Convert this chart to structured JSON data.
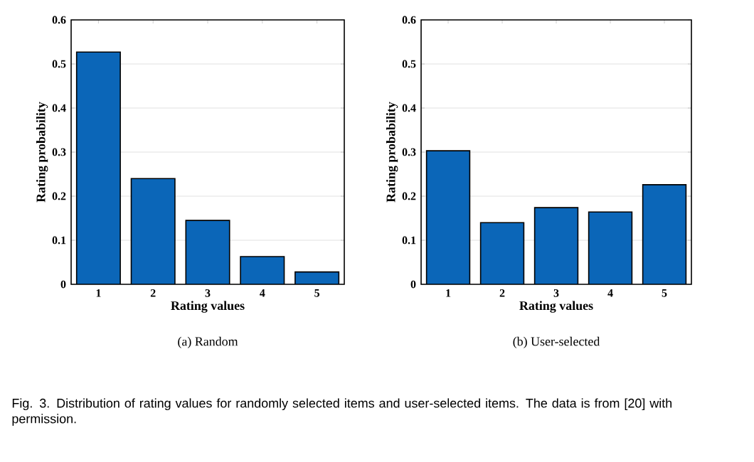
{
  "chart_data": [
    {
      "type": "bar",
      "xlabel": "Rating values",
      "ylabel": "Rating probability",
      "categories": [
        "1",
        "2",
        "3",
        "4",
        "5"
      ],
      "values": [
        0.527,
        0.24,
        0.145,
        0.063,
        0.028
      ],
      "color": "#0b66b8",
      "ylim": [
        0,
        0.6
      ],
      "yticks": [
        0,
        0.1,
        0.2,
        0.3,
        0.4,
        0.5,
        0.6
      ],
      "grid": "y",
      "annotations": [
        "(a) Random"
      ]
    },
    {
      "type": "bar",
      "xlabel": "Rating values",
      "ylabel": "Rating probability",
      "categories": [
        "1",
        "2",
        "3",
        "4",
        "5"
      ],
      "values": [
        0.303,
        0.14,
        0.174,
        0.164,
        0.226
      ],
      "color": "#0b66b8",
      "ylim": [
        0,
        0.6
      ],
      "yticks": [
        0,
        0.1,
        0.2,
        0.3,
        0.4,
        0.5,
        0.6
      ],
      "grid": "y",
      "annotations": [
        "(b) User-selected",
        "Fig. 3. Distribution of rating values for randomly selected items and user-selected items. The data is from [20] with permission."
      ]
    }
  ]
}
